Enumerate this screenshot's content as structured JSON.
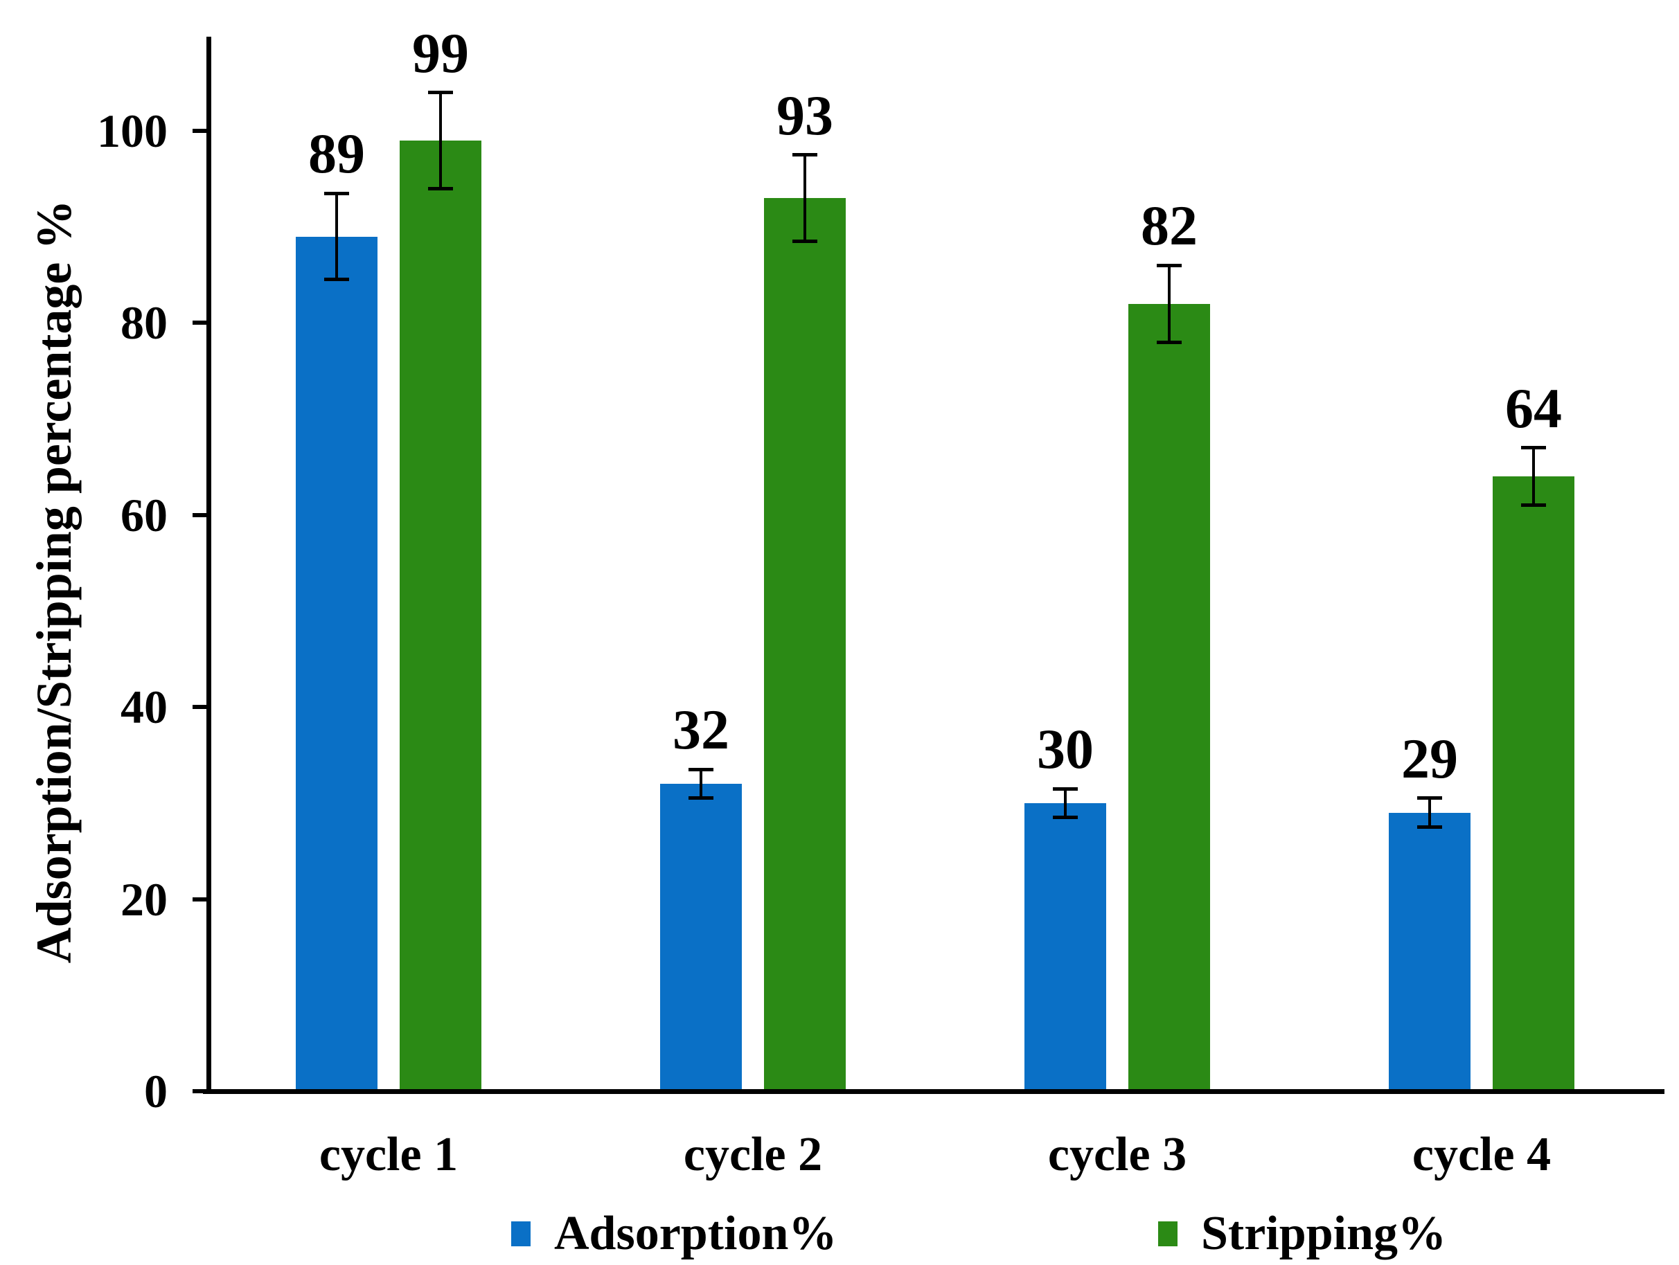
{
  "chart_data": {
    "type": "bar",
    "title": "",
    "xlabel": "",
    "ylabel": "Adsorption/Stripping percentage %",
    "categories": [
      "cycle 1",
      "cycle 2",
      "cycle 3",
      "cycle 4"
    ],
    "series": [
      {
        "name": "Adsorption%",
        "color": "#0A70C6",
        "values": [
          89,
          32,
          30,
          29
        ],
        "errors": [
          4.5,
          1.5,
          1.5,
          1.5
        ]
      },
      {
        "name": "Stripping%",
        "color": "#2B8A15",
        "values": [
          99,
          93,
          82,
          64
        ],
        "errors": [
          5,
          4.5,
          4,
          3
        ]
      }
    ],
    "yticks": [
      0,
      20,
      40,
      60,
      80,
      100
    ],
    "ylim": [
      0,
      110
    ],
    "grid": false,
    "error_bars": true,
    "bar_value_labels": true,
    "legend_position": "bottom",
    "colors": {
      "axis": "#000000",
      "text": "#000000",
      "background": "#ffffff"
    }
  }
}
